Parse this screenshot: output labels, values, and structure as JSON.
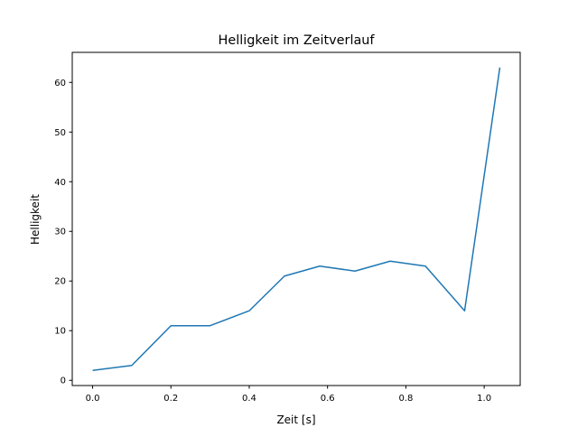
{
  "chart_data": {
    "type": "line",
    "title": "Helligkeit im Zeitverlauf",
    "xlabel": "Zeit [s]",
    "ylabel": "Helligkeit",
    "xlim": [
      -0.052,
      1.092
    ],
    "ylim": [
      -1.05,
      66.05
    ],
    "xticks": [
      0.0,
      0.2,
      0.4,
      0.6,
      0.8,
      1.0
    ],
    "xtick_labels": [
      "0.0",
      "0.2",
      "0.4",
      "0.6",
      "0.8",
      "1.0"
    ],
    "yticks": [
      0,
      10,
      20,
      30,
      40,
      50,
      60
    ],
    "ytick_labels": [
      "0",
      "10",
      "20",
      "30",
      "40",
      "50",
      "60"
    ],
    "grid": false,
    "series": [
      {
        "name": "Helligkeit",
        "color": "#1f77b4",
        "x": [
          0.0,
          0.1,
          0.2,
          0.3,
          0.4,
          0.49,
          0.58,
          0.67,
          0.76,
          0.85,
          0.95,
          1.04
        ],
        "y": [
          2,
          3,
          11,
          11,
          14,
          21,
          23,
          22,
          24,
          23,
          14,
          63
        ]
      }
    ]
  }
}
